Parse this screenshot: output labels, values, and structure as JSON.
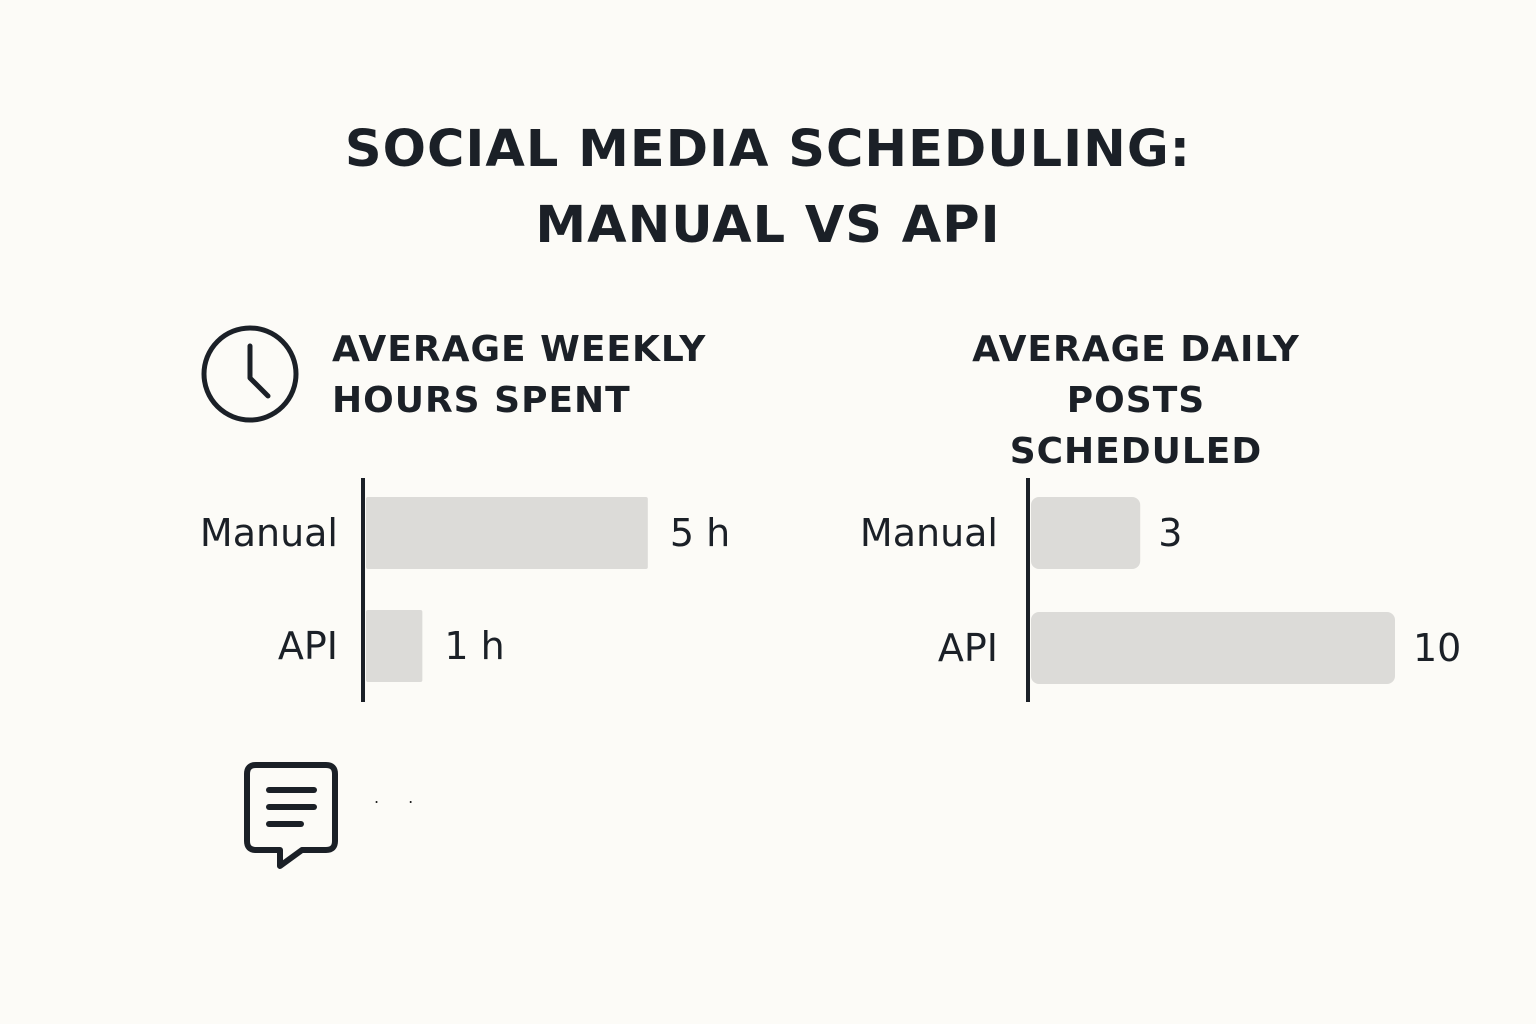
{
  "title": {
    "line1": "SOCIAL MEDIA SCHEDULING:",
    "line2": "MANUAL VS API"
  },
  "icons": {
    "clock": "clock-icon",
    "comment": "comment-icon"
  },
  "footer_dots": ". .",
  "chart_data": [
    {
      "type": "bar",
      "orientation": "horizontal",
      "title": "AVERAGE WEEKLY HOURS SPENT",
      "title_lines": [
        "AVERAGE WEEKLY",
        "HOURS SPENT"
      ],
      "categories": [
        "Manual",
        "API"
      ],
      "values": [
        5,
        1
      ],
      "value_labels": [
        "5 h",
        "1 h"
      ],
      "xlim": [
        0,
        5.5
      ],
      "bar_color": "#dcdbd8",
      "axis_color": "#1b2027",
      "grid": false
    },
    {
      "type": "bar",
      "orientation": "horizontal",
      "title": "AVERAGE DAILY POSTS SCHEDULED",
      "title_lines": [
        "AVERAGE DAILY",
        "POSTS SCHEDULED"
      ],
      "categories": [
        "Manual",
        "API"
      ],
      "values": [
        3,
        10
      ],
      "value_labels": [
        "3",
        "10"
      ],
      "xlim": [
        0,
        10
      ],
      "bar_color": "#dcdbd8",
      "axis_color": "#1b2027",
      "grid": false
    }
  ]
}
